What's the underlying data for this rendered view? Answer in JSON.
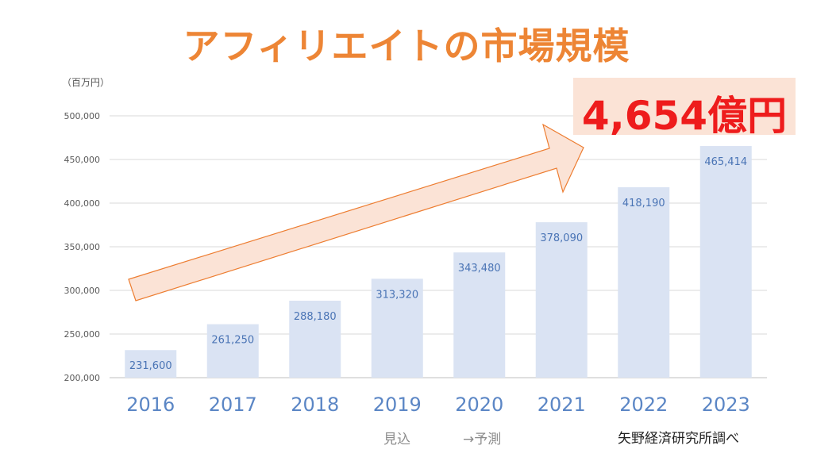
{
  "title": "アフィリエイトの市場規模",
  "unit_label": "（百万円）",
  "highlight": "4,654億円",
  "notes": {
    "estimate": "見込",
    "forecast": "→予測"
  },
  "source": "矢野経済研究所調べ",
  "colors": {
    "bar": "#dae3f3",
    "title": "#ed8535",
    "arrow_fill": "#fbe3d6",
    "arrow_stroke": "#ed7d31",
    "highlight_text": "#ee1c1c"
  },
  "chart_data": {
    "type": "bar",
    "categories": [
      "2016",
      "2017",
      "2018",
      "2019",
      "2020",
      "2021",
      "2022",
      "2023"
    ],
    "values": [
      231600,
      261250,
      288180,
      313320,
      343480,
      378090,
      418190,
      465414
    ],
    "value_labels": [
      "231,600",
      "261,250",
      "288,180",
      "313,320",
      "343,480",
      "378,090",
      "418,190",
      "465,414"
    ],
    "yticks": [
      200000,
      250000,
      300000,
      350000,
      400000,
      450000,
      500000
    ],
    "ytick_labels": [
      "200,000",
      "250,000",
      "300,000",
      "350,000",
      "400,000",
      "450,000",
      "500,000"
    ],
    "ylim": [
      200000,
      500000
    ],
    "grid": true,
    "legend": "none",
    "annotation": "upward-trend-arrow"
  }
}
